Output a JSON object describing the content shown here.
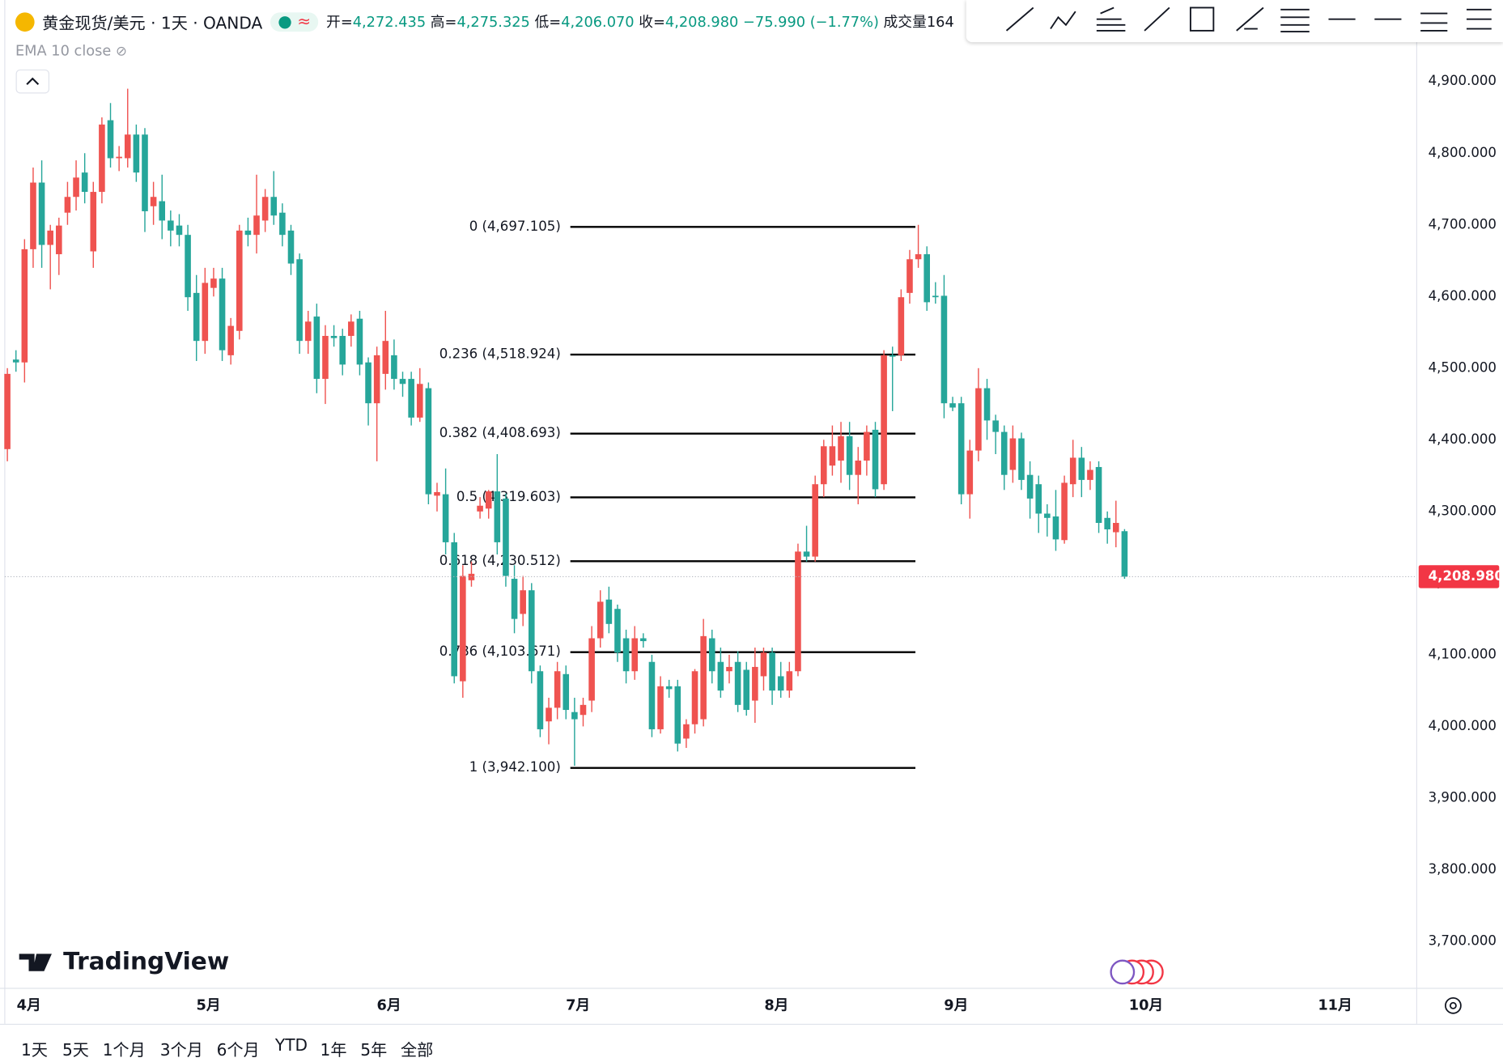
{
  "header": {
    "symbol": "黄金现货/美元 · 1天 · OANDA",
    "ohlc": [
      {
        "label": "开=",
        "value": "4,272.435"
      },
      {
        "label": "高=",
        "value": "4,275.325"
      },
      {
        "label": "低=",
        "value": "4,206.070"
      },
      {
        "label": "收=",
        "value": "4,208.980"
      }
    ],
    "change": "−75.990 (−1.77%)",
    "volume": "成交量164"
  },
  "indicator": "EMA 10 close",
  "watermark": "TradingView",
  "periods": [
    "1天",
    "5天",
    "1个月",
    "3个月",
    "6个月",
    "YTD",
    "1年",
    "5年",
    "全部"
  ],
  "chart_data": {
    "type": "candlestick",
    "up_color": "#ef5350",
    "down_color": "#26a69a",
    "candles": [
      [
        4387,
        4500,
        4370,
        4492
      ],
      [
        4512,
        4525,
        4495,
        4508
      ],
      [
        4508,
        4680,
        4480,
        4666
      ],
      [
        4666,
        4780,
        4640,
        4759
      ],
      [
        4759,
        4790,
        4640,
        4672
      ],
      [
        4672,
        4700,
        4610,
        4692
      ],
      [
        4659,
        4710,
        4630,
        4699
      ],
      [
        4717,
        4760,
        4700,
        4739
      ],
      [
        4739,
        4790,
        4720,
        4766
      ],
      [
        4773,
        4800,
        4730,
        4746
      ],
      [
        4663,
        4760,
        4640,
        4746
      ],
      [
        4746,
        4850,
        4730,
        4840
      ],
      [
        4846,
        4870,
        4780,
        4793
      ],
      [
        4793,
        4810,
        4775,
        4795
      ],
      [
        4793,
        4890,
        4780,
        4826
      ],
      [
        4826,
        4840,
        4760,
        4773
      ],
      [
        4826,
        4835,
        4690,
        4719
      ],
      [
        4726,
        4760,
        4700,
        4739
      ],
      [
        4733,
        4770,
        4680,
        4706
      ],
      [
        4706,
        4720,
        4670,
        4692
      ],
      [
        4699,
        4715,
        4670,
        4686
      ],
      [
        4686,
        4700,
        4580,
        4599
      ],
      [
        4605,
        4630,
        4510,
        4538
      ],
      [
        4538,
        4640,
        4520,
        4619
      ],
      [
        4612,
        4640,
        4600,
        4625
      ],
      [
        4625,
        4640,
        4510,
        4525
      ],
      [
        4518,
        4570,
        4505,
        4559
      ],
      [
        4552,
        4700,
        4540,
        4692
      ],
      [
        4692,
        4710,
        4670,
        4686
      ],
      [
        4686,
        4770,
        4660,
        4713
      ],
      [
        4706,
        4750,
        4690,
        4739
      ],
      [
        4739,
        4775,
        4700,
        4713
      ],
      [
        4717,
        4730,
        4670,
        4686
      ],
      [
        4692,
        4700,
        4630,
        4646
      ],
      [
        4652,
        4660,
        4520,
        4538
      ],
      [
        4538,
        4580,
        4520,
        4565
      ],
      [
        4572,
        4590,
        4465,
        4485
      ],
      [
        4485,
        4560,
        4450,
        4545
      ],
      [
        4545,
        4560,
        4530,
        4542
      ],
      [
        4545,
        4555,
        4490,
        4505
      ],
      [
        4545,
        4575,
        4530,
        4565
      ],
      [
        4569,
        4580,
        4490,
        4505
      ],
      [
        4508,
        4515,
        4420,
        4451
      ],
      [
        4451,
        4530,
        4370,
        4518
      ],
      [
        4492,
        4580,
        4470,
        4538
      ],
      [
        4518,
        4540,
        4470,
        4485
      ],
      [
        4485,
        4495,
        4460,
        4478
      ],
      [
        4485,
        4495,
        4420,
        4431
      ],
      [
        4431,
        4500,
        4425,
        4478
      ],
      [
        4472,
        4480,
        4310,
        4324
      ],
      [
        4322,
        4340,
        4300,
        4327
      ],
      [
        4324,
        4360,
        4240,
        4257
      ],
      [
        4257,
        4270,
        4060,
        4070
      ],
      [
        4063,
        4225,
        4040,
        4210
      ],
      [
        4204,
        4230,
        4195,
        4213
      ],
      [
        4300,
        4320,
        4290,
        4308
      ],
      [
        4304,
        4330,
        4290,
        4328
      ],
      [
        4328,
        4380,
        4240,
        4257
      ],
      [
        4318,
        4325,
        4195,
        4210
      ],
      [
        4206,
        4225,
        4130,
        4150
      ],
      [
        4157,
        4210,
        4140,
        4190
      ],
      [
        4190,
        4200,
        4060,
        4077
      ],
      [
        4077,
        4085,
        3985,
        3996
      ],
      [
        4007,
        4040,
        3975,
        4026
      ],
      [
        4026,
        4090,
        4010,
        4077
      ],
      [
        4073,
        4085,
        4010,
        4023
      ],
      [
        4020,
        4040,
        3945,
        4010
      ],
      [
        4016,
        4040,
        4000,
        4030
      ],
      [
        4036,
        4140,
        4020,
        4123
      ],
      [
        4123,
        4190,
        4110,
        4174
      ],
      [
        4177,
        4195,
        4130,
        4143
      ],
      [
        4164,
        4170,
        4090,
        4103
      ],
      [
        4123,
        4135,
        4060,
        4077
      ],
      [
        4077,
        4140,
        4065,
        4123
      ],
      [
        4123,
        4130,
        4110,
        4119
      ],
      [
        4090,
        4100,
        3985,
        3996
      ],
      [
        3996,
        4070,
        3990,
        4056
      ],
      [
        4056,
        4065,
        4040,
        4052
      ],
      [
        4056,
        4065,
        3965,
        3976
      ],
      [
        3983,
        4010,
        3970,
        4003
      ],
      [
        4003,
        4080,
        3990,
        4077
      ],
      [
        4010,
        4150,
        4000,
        4126
      ],
      [
        4123,
        4135,
        4060,
        4077
      ],
      [
        4090,
        4110,
        4040,
        4050
      ],
      [
        4077,
        4100,
        4060,
        4083
      ],
      [
        4090,
        4105,
        4020,
        4030
      ],
      [
        4079,
        4090,
        4015,
        4023
      ],
      [
        4036,
        4110,
        4005,
        4083
      ],
      [
        4070,
        4110,
        4050,
        4103
      ],
      [
        4103,
        4110,
        4030,
        4050
      ],
      [
        4070,
        4090,
        4040,
        4050
      ],
      [
        4050,
        4090,
        4040,
        4077
      ],
      [
        4077,
        4255,
        4070,
        4244
      ],
      [
        4244,
        4280,
        4230,
        4237
      ],
      [
        4237,
        4350,
        4230,
        4338
      ],
      [
        4338,
        4400,
        4320,
        4391
      ],
      [
        4364,
        4420,
        4350,
        4391
      ],
      [
        4371,
        4425,
        4340,
        4405
      ],
      [
        4405,
        4425,
        4330,
        4351
      ],
      [
        4351,
        4390,
        4310,
        4371
      ],
      [
        4371,
        4420,
        4350,
        4411
      ],
      [
        4414,
        4425,
        4320,
        4331
      ],
      [
        4338,
        4525,
        4330,
        4518
      ],
      [
        4518,
        4530,
        4440,
        4516
      ],
      [
        4518,
        4610,
        4510,
        4599
      ],
      [
        4605,
        4665,
        4590,
        4652
      ],
      [
        4652,
        4700,
        4640,
        4659
      ],
      [
        4659,
        4670,
        4580,
        4592
      ],
      [
        4601,
        4620,
        4590,
        4599
      ],
      [
        4601,
        4630,
        4430,
        4451
      ],
      [
        4451,
        4460,
        4440,
        4445
      ],
      [
        4451,
        4460,
        4310,
        4324
      ],
      [
        4324,
        4400,
        4290,
        4385
      ],
      [
        4385,
        4500,
        4370,
        4472
      ],
      [
        4472,
        4485,
        4400,
        4427
      ],
      [
        4427,
        4435,
        4380,
        4411
      ],
      [
        4411,
        4420,
        4330,
        4351
      ],
      [
        4358,
        4420,
        4340,
        4402
      ],
      [
        4402,
        4410,
        4330,
        4344
      ],
      [
        4351,
        4370,
        4290,
        4318
      ],
      [
        4338,
        4350,
        4270,
        4297
      ],
      [
        4297,
        4310,
        4265,
        4291
      ],
      [
        4293,
        4330,
        4245,
        4261
      ],
      [
        4260,
        4350,
        4255,
        4340
      ],
      [
        4338,
        4400,
        4320,
        4375
      ],
      [
        4375,
        4390,
        4320,
        4344
      ],
      [
        4344,
        4370,
        4330,
        4358
      ],
      [
        4362,
        4370,
        4270,
        4284
      ],
      [
        4291,
        4300,
        4255,
        4275
      ],
      [
        4271,
        4315,
        4250,
        4284
      ],
      [
        4272.435,
        4275.325,
        4206.07,
        4208.98
      ]
    ],
    "ylim": [
      3634.4,
      5013.8
    ],
    "yticks": [
      {
        "value": 3700,
        "label": "3,700.000"
      },
      {
        "value": 3800,
        "label": "3,800.000"
      },
      {
        "value": 3900,
        "label": "3,900.000"
      },
      {
        "value": 4000,
        "label": "4,000.000"
      },
      {
        "value": 4100,
        "label": "4,100.000"
      },
      {
        "value": 4200,
        "label": "4,200.000"
      },
      {
        "value": 4300,
        "label": "4,300.000"
      },
      {
        "value": 4400,
        "label": "4,400.000"
      },
      {
        "value": 4500,
        "label": "4,500.000"
      },
      {
        "value": 4600,
        "label": "4,600.000"
      },
      {
        "value": 4700,
        "label": "4,700.000"
      },
      {
        "value": 4800,
        "label": "4,800.000"
      },
      {
        "value": 4900,
        "label": "4,900.000"
      }
    ],
    "xlim": [
      -0.3,
      164
    ],
    "xticks": [
      {
        "value": 2.5,
        "label": "4月"
      },
      {
        "value": 23.4,
        "label": "5月"
      },
      {
        "value": 44.4,
        "label": "6月"
      },
      {
        "value": 66.4,
        "label": "7月"
      },
      {
        "value": 89.5,
        "label": "8月"
      },
      {
        "value": 110.4,
        "label": "9月"
      },
      {
        "value": 132.5,
        "label": "10月"
      },
      {
        "value": 154.5,
        "label": "11月"
      }
    ],
    "last_price": {
      "value": 4208.98,
      "label": "4,208.980"
    },
    "fib_levels": [
      {
        "value": 4697.105,
        "label": "0 (4,697.105)"
      },
      {
        "value": 4518.924,
        "label": "0.236 (4,518.924)"
      },
      {
        "value": 4408.693,
        "label": "0.382 (4,408.693)"
      },
      {
        "value": 4319.603,
        "label": "0.5 (4,319.603)"
      },
      {
        "value": 4230.512,
        "label": "0.618 (4,230.512)"
      },
      {
        "value": 4103.671,
        "label": "0.786 (4,103.671)"
      },
      {
        "value": 3942.1,
        "label": "1 (3,942.100)"
      }
    ]
  }
}
